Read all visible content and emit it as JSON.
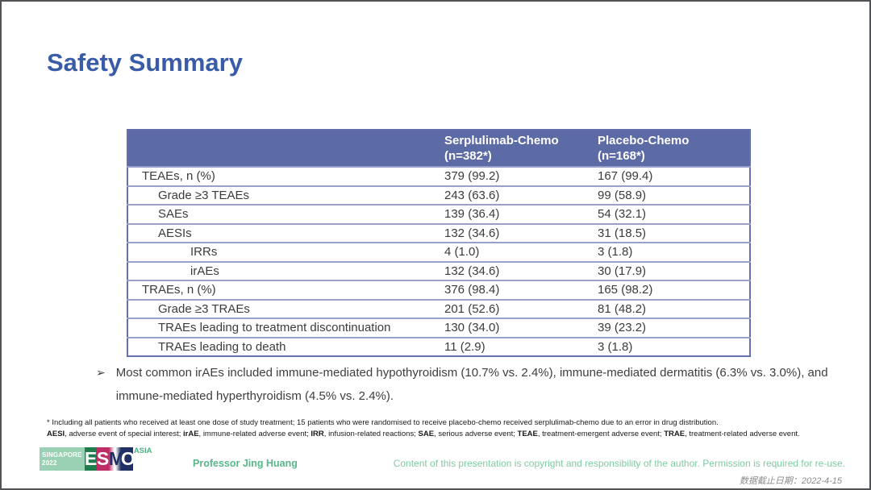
{
  "title": "Safety Summary",
  "table": {
    "header": {
      "serplulimab": {
        "line1": "Serplulimab-Chemo",
        "line2": "(n=382*)"
      },
      "placebo": {
        "line1": "Placebo-Chemo",
        "line2": "(n=168*)"
      }
    },
    "rows": [
      {
        "label": "TEAEs, n (%)",
        "indent": 0,
        "serplulimab": "379 (99.2)",
        "placebo": "167 (99.4)"
      },
      {
        "label": "Grade ≥3 TEAEs",
        "indent": 1,
        "serplulimab": "243 (63.6)",
        "placebo": "99 (58.9)"
      },
      {
        "label": "SAEs",
        "indent": 1,
        "serplulimab": "139 (36.4)",
        "placebo": "54 (32.1)"
      },
      {
        "label": "AESIs",
        "indent": 1,
        "serplulimab": "132 (34.6)",
        "placebo": "31 (18.5)"
      },
      {
        "label": "IRRs",
        "indent": 2,
        "serplulimab": "4 (1.0)",
        "placebo": "3 (1.8)"
      },
      {
        "label": "irAEs",
        "indent": 2,
        "serplulimab": "132 (34.6)",
        "placebo": "30 (17.9)"
      },
      {
        "label": "TRAEs, n (%)",
        "indent": 0,
        "serplulimab": "376 (98.4)",
        "placebo": "165 (98.2)"
      },
      {
        "label": "Grade ≥3 TRAEs",
        "indent": 1,
        "serplulimab": "201 (52.6)",
        "placebo": "81 (48.2)"
      },
      {
        "label": "TRAEs leading to treatment discontinuation",
        "indent": 1,
        "serplulimab": "130 (34.0)",
        "placebo": "39 (23.2)"
      },
      {
        "label": "TRAEs leading to death",
        "indent": 1,
        "serplulimab": "11 (2.9)",
        "placebo": "3 (1.8)"
      }
    ]
  },
  "bullet_text": "Most common irAEs included immune-mediated hypothyroidism (10.7% vs. 2.4%), immune-mediated dermatitis (6.3% vs. 3.0%), and immune-mediated hyperthyroidism (4.5% vs. 2.4%).",
  "footnotes": {
    "line1": "* Including all patients who received at least one dose of study treatment; 15 patients who were randomised to receive placebo-chemo received serplulimab-chemo due to an error in drug distribution.",
    "line2_segments": [
      {
        "text": "AESI",
        "bold": true
      },
      {
        "text": ", adverse event of special interest; ",
        "bold": false
      },
      {
        "text": "irAE",
        "bold": true
      },
      {
        "text": ", immune-related adverse event; ",
        "bold": false
      },
      {
        "text": "IRR",
        "bold": true
      },
      {
        "text": ", infusion-related reactions; ",
        "bold": false
      },
      {
        "text": "SAE",
        "bold": true
      },
      {
        "text": ", serious adverse event; ",
        "bold": false
      },
      {
        "text": "TEAE",
        "bold": true
      },
      {
        "text": ", treatment-emergent adverse event; ",
        "bold": false
      },
      {
        "text": "TRAE",
        "bold": true
      },
      {
        "text": ", treatment-related adverse event.",
        "bold": false
      }
    ]
  },
  "footer": {
    "logo": {
      "event_line1": "SINGAPORE",
      "event_line2": "2022",
      "letters": [
        "E",
        "S",
        "M",
        "O"
      ],
      "region": "ASIA"
    },
    "author": "Professor Jing Huang",
    "copyright": "Content of this presentation is copyright and responsibility of the author. Permission is required for re-use.",
    "data_cutoff": "数据截止日期：2022-4-15"
  },
  "colors": {
    "title_blue": "#3a5ca8",
    "table_header_bg": "#5c6aa5",
    "table_border": "#6470ab",
    "row_divider": "#98a0ca",
    "author_green": "#57b78a",
    "copyright_green": "#7fcba3",
    "logo_event_bg": "#9ad1b4",
    "logo_e_bg": "#1f7d4c",
    "logo_s_bg": "#bf2d66",
    "logo_o_bg": "#203063",
    "logo_region_green": "#4caf82"
  }
}
